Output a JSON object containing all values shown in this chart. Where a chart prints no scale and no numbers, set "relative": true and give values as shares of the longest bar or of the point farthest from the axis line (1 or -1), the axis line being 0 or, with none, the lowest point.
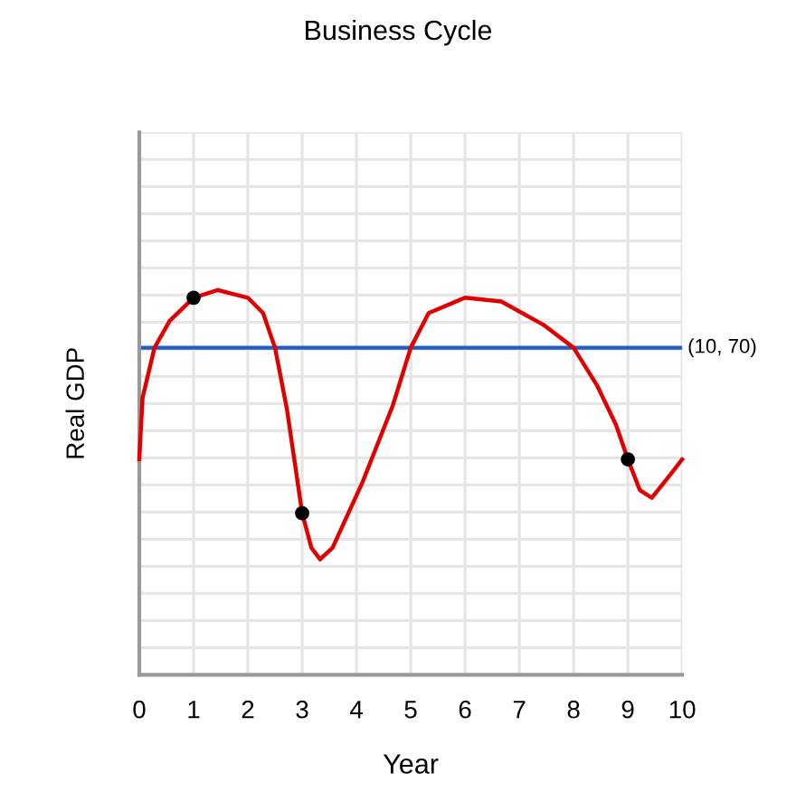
{
  "chart_data": {
    "type": "line",
    "title": "Business Cycle",
    "xlabel": "Year",
    "ylabel": "Real GDP",
    "relative": true,
    "xlim": [
      0,
      10
    ],
    "xticks": [
      0,
      1,
      2,
      3,
      4,
      5,
      6,
      7,
      8,
      9,
      10
    ],
    "grid": true,
    "series": [
      {
        "color": "#e00000",
        "x": [
          0,
          0.06,
          0.28,
          0.56,
          1,
          1.44,
          2,
          2.28,
          2.5,
          2.72,
          3,
          3.17,
          3.33,
          3.56,
          4.11,
          4.67,
          5,
          5.33,
          6,
          6.67,
          7.44,
          8,
          8.44,
          8.78,
          9,
          9.22,
          9.44,
          9.78,
          10
        ],
        "values": [
          0.56,
          0.72,
          0.85,
          0.92,
          0.98,
          1,
          0.98,
          0.94,
          0.85,
          0.69,
          0.42,
          0.33,
          0.3,
          0.33,
          0.5,
          0.7,
          0.85,
          0.94,
          0.98,
          0.97,
          0.91,
          0.85,
          0.75,
          0.65,
          0.56,
          0.48,
          0.46,
          0.52,
          0.56
        ]
      },
      {
        "type": "scatter",
        "color": "#000000",
        "marker": "circle",
        "x": [
          1,
          3,
          9
        ],
        "values": [
          0.98,
          0.42,
          0.56
        ]
      }
    ],
    "ref_lines": [
      {
        "axis": "y",
        "value": 0.85,
        "color": "#1f5fc4"
      }
    ],
    "annotations": [
      "(10, 70)"
    ]
  }
}
